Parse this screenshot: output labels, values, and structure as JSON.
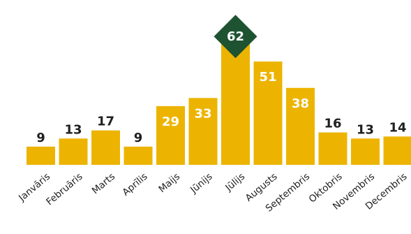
{
  "chart_data": {
    "type": "bar",
    "categories": [
      "Janvāris",
      "Februāris",
      "Marts",
      "Aprīlis",
      "Maijs",
      "Jūnijs",
      "Jūlijs",
      "Augusts",
      "Septembris",
      "Oktobris",
      "Novembris",
      "Decembris"
    ],
    "values": [
      9,
      13,
      17,
      9,
      29,
      33,
      62,
      51,
      38,
      16,
      13,
      14
    ],
    "value_labels": [
      "9",
      "13",
      "17",
      "9",
      "29",
      "33",
      "62",
      "51",
      "38",
      "16",
      "13",
      "14"
    ],
    "title": "",
    "xlabel": "",
    "ylabel": "",
    "ylim": [
      0,
      70
    ],
    "grid": false,
    "legend": "none",
    "highlight_index": 6,
    "colors": {
      "bar": "#ECB400",
      "label_dark": "#1f1f1f",
      "label_light": "#ffffff",
      "highlight_badge": "#1E5331"
    }
  }
}
